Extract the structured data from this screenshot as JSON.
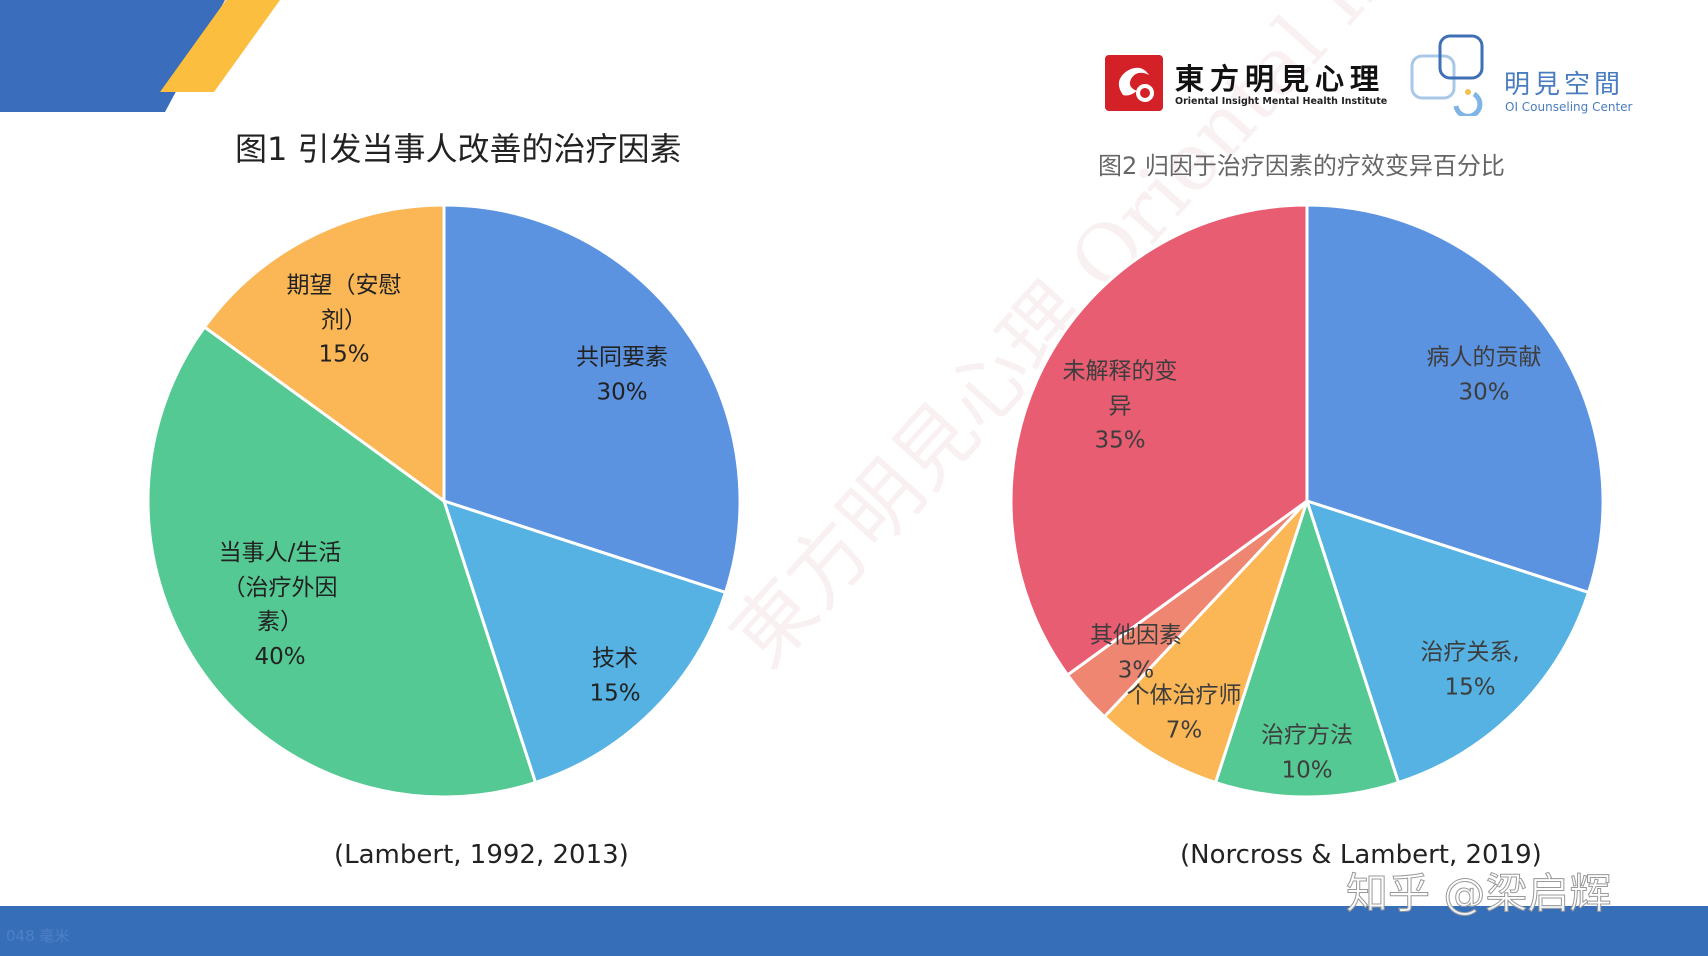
{
  "logos": {
    "logo1_name": "東方明見心理",
    "logo1_sub": "Oriental Insight Mental Health Institute",
    "logo2_name": "明見空間",
    "logo2_sub": "OI Counseling Center"
  },
  "background_watermark": "東方明見心理 Oriental Insight Mental Health Institute",
  "watermark": "知乎 @梁启辉",
  "footer_note": "048 毫米",
  "colors": {
    "blue": "#5B93E1",
    "light_blue": "#55B2E2",
    "green": "#55C993",
    "orange": "#FBB655",
    "red": "#E95D73",
    "salmon": "#EE8672",
    "header_blue": "#3A6EBD",
    "header_yellow": "#FBBE3F"
  },
  "chart_data": [
    {
      "type": "pie",
      "title": "图1 引发当事人改善的治疗因素",
      "source": "(Lambert, 1992, 2013)",
      "start": "top, clockwise",
      "slices": [
        {
          "label": "共同要素",
          "value": 30,
          "value_label": "30%",
          "color": "#5B93E1"
        },
        {
          "label": "技术",
          "value": 15,
          "value_label": "15%",
          "color": "#55B2E2"
        },
        {
          "label": "当事人/生活（治疗外因素）",
          "value": 40,
          "value_label": "40%",
          "color": "#55C993"
        },
        {
          "label": "期望（安慰剂）",
          "value": 15,
          "value_label": "15%",
          "color": "#FBB655"
        }
      ]
    },
    {
      "type": "pie",
      "title": "图2 归因于治疗因素的疗效变异百分比",
      "source": "(Norcross & Lambert, 2019)",
      "start": "top, clockwise",
      "slices": [
        {
          "label": "病人的贡献",
          "value": 30,
          "value_label": "30%",
          "color": "#5B93E1"
        },
        {
          "label": "治疗关系,",
          "value": 15,
          "value_label": "15%",
          "color": "#55B2E2"
        },
        {
          "label": "治疗方法",
          "value": 10,
          "value_label": "10%",
          "color": "#55C993"
        },
        {
          "label": "个体治疗师",
          "value": 7,
          "value_label": "7%",
          "color": "#FBB655"
        },
        {
          "label": "其他因素",
          "value": 3,
          "value_label": "3%",
          "color": "#EE8672"
        },
        {
          "label": "未解释的变异",
          "value": 35,
          "value_label": "35%",
          "color": "#E95D73"
        }
      ]
    }
  ]
}
